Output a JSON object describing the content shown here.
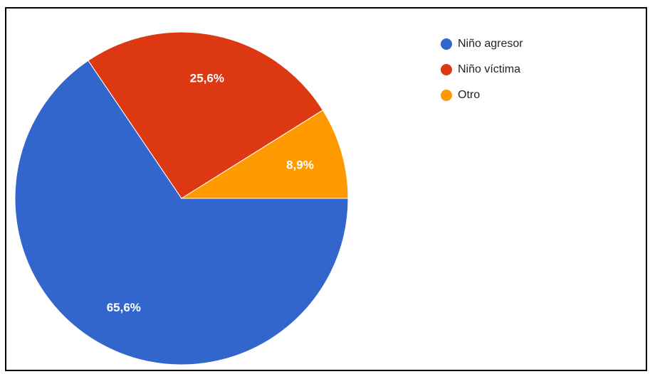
{
  "chart_data": {
    "type": "pie",
    "categories": [
      "Niño agresor",
      "Niño víctima",
      "Otro"
    ],
    "values": [
      65.6,
      25.6,
      8.9
    ],
    "labels": [
      "65,6%",
      "25,6%",
      "8,9%"
    ],
    "colors": [
      "#3366cc",
      "#dc3912",
      "#ff9900"
    ],
    "legend_position": "right",
    "start": "3 o'clock",
    "direction": "clockwise"
  }
}
